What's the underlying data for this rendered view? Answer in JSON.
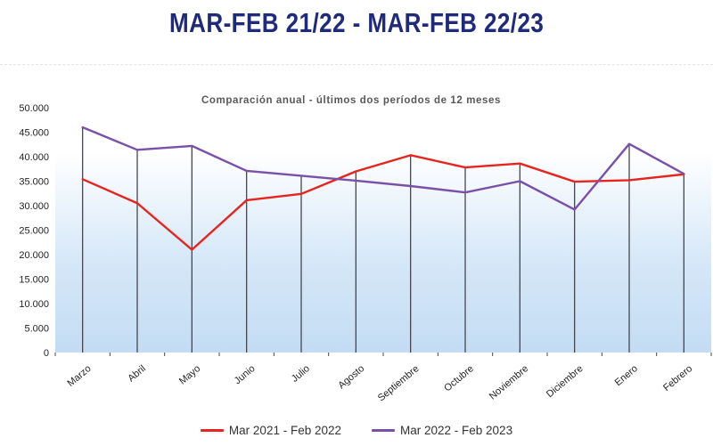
{
  "header": {
    "title": "MAR-FEB 21/22 - MAR-FEB 22/23"
  },
  "chart_data": {
    "type": "line",
    "title": "Comparación  anual - últimos dos períodos de 12 meses",
    "categories": [
      "Marzo",
      "Abril",
      "Mayo",
      "Junio",
      "Julio",
      "Agosto",
      "Septiembre",
      "Octubre",
      "Noviembre",
      "Diciembre",
      "Enero",
      "Febrero"
    ],
    "series": [
      {
        "name": "Mar 2021 - Feb 2022",
        "color": "#e8241f",
        "values": [
          35400,
          30500,
          21000,
          31100,
          32400,
          37000,
          40300,
          37800,
          38600,
          34900,
          35200,
          36400
        ]
      },
      {
        "name": "Mar 2022 - Feb 2023",
        "color": "#7a50a8",
        "values": [
          46000,
          41400,
          42200,
          37100,
          36100,
          35100,
          34000,
          32700,
          35000,
          29200,
          42600,
          36500
        ]
      }
    ],
    "ylim": [
      0,
      50000
    ],
    "ytick_step": 5000,
    "ytick_labels": [
      "0",
      "5.000",
      "10.000",
      "15.000",
      "20.000",
      "25.000",
      "30.000",
      "35.000",
      "40.000",
      "45.000",
      "50.000"
    ],
    "xlabel": "",
    "ylabel": "",
    "grid": "vertical-drop-lines-per-category",
    "legend_position": "bottom",
    "plot_background": {
      "gradient_top": "#ffffff",
      "gradient_mid": "#d6e8f8",
      "gradient_bottom": "#c3dcf3"
    }
  },
  "colors": {
    "title_text": "#1f2b7a",
    "subtitle_text": "#595959",
    "axis_text": "#232323",
    "drop_line": "#46464f",
    "legend_text": "#333333"
  }
}
